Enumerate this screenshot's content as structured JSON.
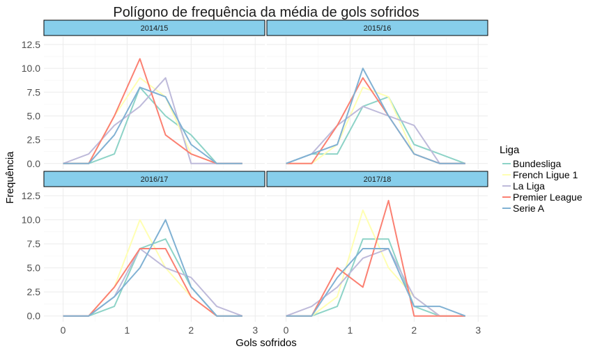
{
  "chart_data": {
    "type": "line",
    "title": "Polígono de frequência da média de gols sofridos",
    "xlabel": "Gols sofridos",
    "ylabel": "Frequência",
    "xlim": [
      -0.3,
      3.15
    ],
    "ylim": [
      -0.6,
      13.3
    ],
    "xticks": [
      "0",
      "1",
      "2",
      "3"
    ],
    "yticks": [
      "0.0",
      "2.5",
      "5.0",
      "7.5",
      "10.0",
      "12.5"
    ],
    "legend": {
      "title": "Liga",
      "position": "right",
      "entries": [
        "Bundesliga",
        "French Ligue 1",
        "La Liga",
        "Premier League",
        "Serie A"
      ]
    },
    "colors": {
      "Bundesliga": "#8dd3c7",
      "French Ligue 1": "#ffffb3",
      "La Liga": "#bebada",
      "Premier League": "#fb8072",
      "Serie A": "#80b1d3",
      "strip_fill": "#87ceeb"
    },
    "x": [
      0,
      0.4,
      0.8,
      1.2,
      1.6,
      2.0,
      2.4,
      2.8
    ],
    "panels": [
      {
        "label": "2014/15",
        "series": [
          {
            "name": "Bundesliga",
            "values": [
              0,
              0,
              1,
              8,
              5,
              3,
              0,
              0
            ]
          },
          {
            "name": "French Ligue 1",
            "values": [
              0,
              0,
              5,
              9,
              7,
              1,
              0,
              0
            ]
          },
          {
            "name": "La Liga",
            "values": [
              0,
              1,
              4,
              6,
              9,
              0,
              0,
              0
            ]
          },
          {
            "name": "Premier League",
            "values": [
              0,
              0,
              5,
              11,
              3,
              1,
              0,
              0
            ]
          },
          {
            "name": "Serie A",
            "values": [
              0,
              0,
              3,
              8,
              7,
              2,
              0,
              0
            ]
          }
        ]
      },
      {
        "label": "2015/16",
        "series": [
          {
            "name": "Bundesliga",
            "values": [
              0,
              1,
              1,
              6,
              7,
              2,
              1,
              0
            ]
          },
          {
            "name": "French Ligue 1",
            "values": [
              0,
              0,
              2,
              8,
              7,
              1,
              0,
              0
            ]
          },
          {
            "name": "La Liga",
            "values": [
              0,
              1,
              4,
              6,
              5,
              4,
              0,
              0
            ]
          },
          {
            "name": "Premier League",
            "values": [
              0,
              0,
              4,
              9,
              5,
              1,
              0,
              0
            ]
          },
          {
            "name": "Serie A",
            "values": [
              0,
              1,
              2,
              10,
              5,
              1,
              0,
              0
            ]
          }
        ]
      },
      {
        "label": "2016/17",
        "series": [
          {
            "name": "Bundesliga",
            "values": [
              0,
              0,
              1,
              7,
              8,
              3,
              0,
              0
            ]
          },
          {
            "name": "French Ligue 1",
            "values": [
              0,
              0,
              3,
              10,
              5,
              2,
              0,
              0
            ]
          },
          {
            "name": "La Liga",
            "values": [
              0,
              0,
              2,
              7,
              5,
              4,
              1,
              0
            ]
          },
          {
            "name": "Premier League",
            "values": [
              0,
              0,
              3,
              7,
              7,
              2,
              0,
              0
            ]
          },
          {
            "name": "Serie A",
            "values": [
              0,
              0,
              2,
              5,
              10,
              3,
              0,
              0
            ]
          }
        ]
      },
      {
        "label": "2017/18",
        "series": [
          {
            "name": "Bundesliga",
            "values": [
              0,
              0,
              1,
              8,
              8,
              1,
              0,
              0
            ]
          },
          {
            "name": "French Ligue 1",
            "values": [
              0,
              0,
              2,
              11,
              5,
              2,
              0,
              0
            ]
          },
          {
            "name": "La Liga",
            "values": [
              0,
              1,
              3,
              6,
              7,
              2,
              0,
              0
            ]
          },
          {
            "name": "Premier League",
            "values": [
              0,
              0,
              5,
              3,
              12,
              0,
              0,
              0
            ]
          },
          {
            "name": "Serie A",
            "values": [
              0,
              0,
              4,
              7,
              7,
              1,
              1,
              0
            ]
          }
        ]
      }
    ]
  }
}
